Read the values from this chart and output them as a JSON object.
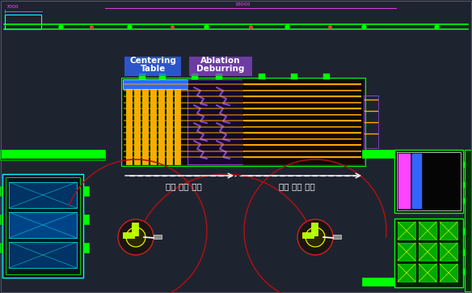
{
  "bg_color": "#1e2330",
  "green": "#00ff00",
  "cyan": "#00ffff",
  "yellow": "#ffff00",
  "orange": "#ffaa00",
  "blue": "#3366ff",
  "purple": "#8844cc",
  "red_arc": "#aa1111",
  "white": "#ffffff",
  "magenta": "#ff44ff",
  "yellow_green": "#aaff00",
  "label_centering": "Centering",
  "label_table": "Table",
  "label_ablation": "Ablation",
  "label_deburring": "Deburring",
  "label_input": "입측 셔틀 이동",
  "label_output": "출측 셔틀 이동",
  "dim_7000": "7000",
  "dim_18000": "18000"
}
